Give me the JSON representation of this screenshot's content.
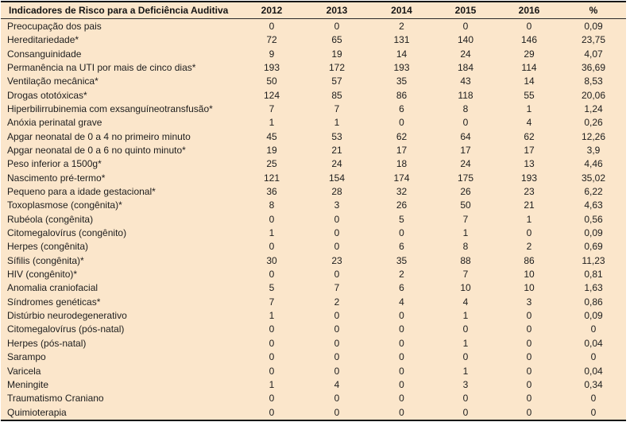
{
  "colors": {
    "table_background": "#FBE6CB",
    "border": "#161616",
    "text": "#1D1D1D"
  },
  "chart_data": {
    "type": "table",
    "title": "Indicadores de Risco para a Deficiência Auditiva",
    "columns": [
      "Indicadores de Risco para a Deficiência Auditiva",
      "2012",
      "2013",
      "2014",
      "2015",
      "2016",
      "%"
    ],
    "rows": [
      {
        "indicator": "Preocupação dos pais",
        "values": [
          0,
          0,
          2,
          0,
          0
        ],
        "percent": "0,09"
      },
      {
        "indicator": "Hereditariedade*",
        "values": [
          72,
          65,
          131,
          140,
          146
        ],
        "percent": "23,75"
      },
      {
        "indicator": "Consanguinidade",
        "values": [
          9,
          19,
          14,
          24,
          29
        ],
        "percent": "4,07"
      },
      {
        "indicator": "Permanência na UTI por mais de cinco dias*",
        "values": [
          193,
          172,
          193,
          184,
          114
        ],
        "percent": "36,69"
      },
      {
        "indicator": "Ventilação mecânica*",
        "values": [
          50,
          57,
          35,
          43,
          14
        ],
        "percent": "8,53"
      },
      {
        "indicator": "Drogas ototóxicas*",
        "values": [
          124,
          85,
          86,
          118,
          55
        ],
        "percent": "20,06"
      },
      {
        "indicator": "Hiperbilirrubinemia com exsanguíneotransfusão*",
        "values": [
          7,
          7,
          6,
          8,
          1
        ],
        "percent": "1,24"
      },
      {
        "indicator": "Anóxia perinatal grave",
        "values": [
          1,
          1,
          0,
          0,
          4
        ],
        "percent": "0,26"
      },
      {
        "indicator": "Apgar neonatal de 0 a 4 no primeiro minuto",
        "values": [
          45,
          53,
          62,
          64,
          62
        ],
        "percent": "12,26"
      },
      {
        "indicator": "Apgar neonatal de 0 a 6 no quinto minuto*",
        "values": [
          19,
          21,
          17,
          17,
          17
        ],
        "percent": "3,9"
      },
      {
        "indicator": "Peso inferior a 1500g*",
        "values": [
          25,
          24,
          18,
          24,
          13
        ],
        "percent": "4,46"
      },
      {
        "indicator": "Nascimento pré-termo*",
        "values": [
          121,
          154,
          174,
          175,
          193
        ],
        "percent": "35,02"
      },
      {
        "indicator": "Pequeno para a idade gestacional*",
        "values": [
          36,
          28,
          32,
          26,
          23
        ],
        "percent": "6,22"
      },
      {
        "indicator": "Toxoplasmose (congênita)*",
        "values": [
          8,
          3,
          26,
          50,
          21
        ],
        "percent": "4,63"
      },
      {
        "indicator": "Rubéola (congênita)",
        "values": [
          0,
          0,
          5,
          7,
          1
        ],
        "percent": "0,56"
      },
      {
        "indicator": "Citomegalovírus (congênito)",
        "values": [
          1,
          0,
          0,
          1,
          0
        ],
        "percent": "0,09"
      },
      {
        "indicator": "Herpes (congênita)",
        "values": [
          0,
          0,
          6,
          8,
          2
        ],
        "percent": "0,69"
      },
      {
        "indicator": "Sífilis (congênita)*",
        "values": [
          30,
          23,
          35,
          88,
          86
        ],
        "percent": "11,23"
      },
      {
        "indicator": "HIV (congênito)*",
        "values": [
          0,
          0,
          2,
          7,
          10
        ],
        "percent": "0,81"
      },
      {
        "indicator": "Anomalia craniofacial",
        "values": [
          5,
          7,
          6,
          10,
          10
        ],
        "percent": "1,63"
      },
      {
        "indicator": "Síndromes genéticas*",
        "values": [
          7,
          2,
          4,
          4,
          3
        ],
        "percent": "0,86"
      },
      {
        "indicator": "Distúrbio neurodegenerativo",
        "values": [
          1,
          0,
          0,
          1,
          0
        ],
        "percent": "0,09"
      },
      {
        "indicator": "Citomegalovírus (pós-natal)",
        "values": [
          0,
          0,
          0,
          0,
          0
        ],
        "percent": "0"
      },
      {
        "indicator": "Herpes (pós-natal)",
        "values": [
          0,
          0,
          0,
          1,
          0
        ],
        "percent": "0,04"
      },
      {
        "indicator": "Sarampo",
        "values": [
          0,
          0,
          0,
          0,
          0
        ],
        "percent": "0"
      },
      {
        "indicator": "Varicela",
        "values": [
          0,
          0,
          0,
          1,
          0
        ],
        "percent": "0,04"
      },
      {
        "indicator": "Meningite",
        "values": [
          1,
          4,
          0,
          3,
          0
        ],
        "percent": "0,34"
      },
      {
        "indicator": "Traumatismo Craniano",
        "values": [
          0,
          0,
          0,
          0,
          0
        ],
        "percent": "0"
      },
      {
        "indicator": "Quimioterapia",
        "values": [
          0,
          0,
          0,
          0,
          0
        ],
        "percent": "0"
      }
    ]
  }
}
